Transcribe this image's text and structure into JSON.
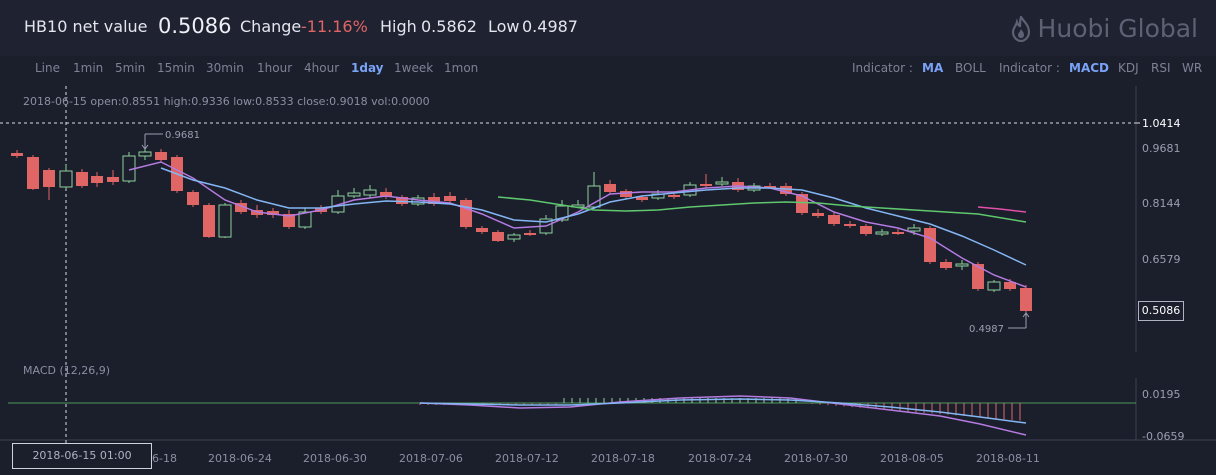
{
  "header": {
    "title": "HB10 net value",
    "value": "0.5086",
    "change_label": "Change",
    "change_value": "-11.16%",
    "high_label": "High",
    "high_value": "0.5862",
    "low_label": "Low",
    "low_value": "0.4987",
    "brand": "Huobi Global"
  },
  "toolbar": {
    "periods": [
      "Line",
      "1min",
      "5min",
      "15min",
      "30min",
      "1hour",
      "4hour",
      "1day",
      "1week",
      "1mon"
    ],
    "active_period": "1day",
    "indicator_label": "Indicator :",
    "main_indicators": [
      "MA",
      "BOLL"
    ],
    "active_main": "MA",
    "sub_indicators": [
      "MACD",
      "KDJ",
      "RSI",
      "WR"
    ],
    "active_sub": "MACD"
  },
  "ohlc_info": "2018-06-15   open:0.8551  high:0.9336  low:0.8533  close:0.9018  vol:0.0000",
  "price_axis": {
    "ticks": [
      "1.0414",
      "0.9681",
      "0.8144",
      "0.6579"
    ],
    "current_price": "0.5086"
  },
  "macd": {
    "label": "MACD (12,26,9)",
    "ticks": [
      "0.0195",
      "-0.0659"
    ]
  },
  "annotations": {
    "max_label": "0.9681",
    "min_label": "0.4987"
  },
  "x_axis": {
    "dates": [
      "6-18",
      "2018-06-24",
      "2018-06-30",
      "2018-07-06",
      "2018-07-12",
      "2018-07-18",
      "2018-07-24",
      "2018-07-30",
      "2018-08-05",
      "2018-08-11"
    ],
    "crosshair_date": "2018-06-15 01:00"
  },
  "colors": {
    "up": "#8fd19e",
    "down": "#e06565",
    "ma_fast": "#b47be0",
    "ma_mid": "#84b6f4",
    "ma_slow": "#5fc76e",
    "ma_long": "#e04fa8",
    "accent": "#7aa2f7"
  }
}
